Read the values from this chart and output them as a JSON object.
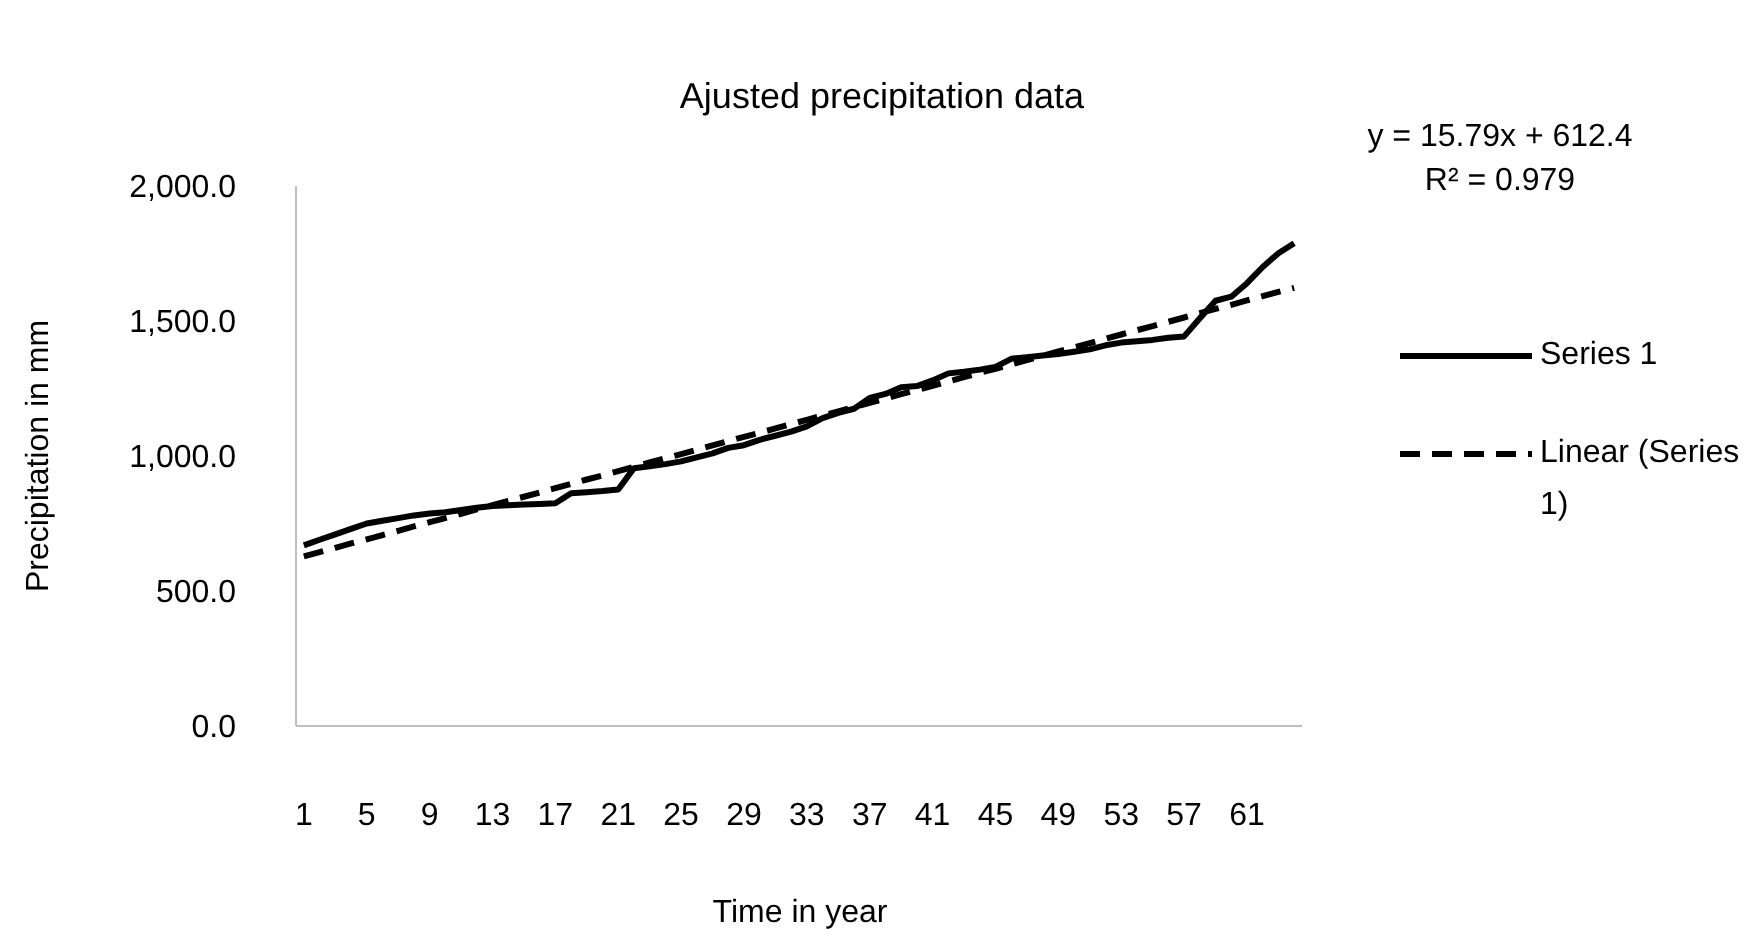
{
  "chart_data": {
    "type": "line",
    "title": "Ajusted precipitation data",
    "xlabel": "Time in year",
    "ylabel": "Precipitation in mm",
    "categories": [
      "1",
      null,
      null,
      null,
      "5",
      null,
      null,
      null,
      "9",
      null,
      null,
      null,
      "13",
      null,
      null,
      null,
      "17",
      null,
      null,
      null,
      "21",
      null,
      null,
      null,
      "25",
      null,
      null,
      null,
      "29",
      null,
      null,
      null,
      "33",
      null,
      null,
      null,
      "37",
      null,
      null,
      null,
      "41",
      null,
      null,
      null,
      "45",
      null,
      null,
      null,
      "49",
      null,
      null,
      null,
      "53",
      null,
      null,
      null,
      "57",
      null,
      null,
      null,
      "61",
      null,
      null,
      null
    ],
    "series": [
      {
        "name": "Series 1",
        "color": "#000000",
        "line_style": "solid",
        "values": [
          669,
          690,
          710,
          730,
          750,
          760,
          770,
          780,
          787,
          792,
          800,
          808,
          815,
          818,
          820,
          822,
          825,
          862,
          866,
          870,
          876,
          955,
          962,
          970,
          980,
          995,
          1010,
          1030,
          1040,
          1060,
          1075,
          1090,
          1110,
          1140,
          1160,
          1175,
          1215,
          1230,
          1255,
          1259,
          1280,
          1306,
          1312,
          1320,
          1330,
          1360,
          1366,
          1372,
          1378,
          1386,
          1395,
          1410,
          1420,
          1425,
          1430,
          1438,
          1443,
          1510,
          1575,
          1590,
          1640,
          1700,
          1751,
          1788
        ]
      },
      {
        "name": "Linear (Series 1)",
        "color": "#000000",
        "line_style": "dashed",
        "values": [
          628,
          644,
          660,
          676,
          691,
          707,
          723,
          739,
          755,
          770,
          786,
          802,
          818,
          834,
          849,
          865,
          881,
          897,
          913,
          928,
          944,
          960,
          976,
          992,
          1007,
          1023,
          1039,
          1055,
          1071,
          1086,
          1102,
          1118,
          1134,
          1150,
          1165,
          1181,
          1197,
          1213,
          1229,
          1244,
          1260,
          1276,
          1292,
          1308,
          1323,
          1339,
          1355,
          1371,
          1387,
          1402,
          1418,
          1434,
          1450,
          1466,
          1481,
          1497,
          1513,
          1529,
          1545,
          1560,
          1576,
          1592,
          1608,
          1623
        ]
      }
    ],
    "ylim": [
      0,
      2000
    ],
    "yticks": [
      {
        "value": 0,
        "label": "0.0"
      },
      {
        "value": 500,
        "label": "500.0"
      },
      {
        "value": 1000,
        "label": "1,000.0"
      },
      {
        "value": 1500,
        "label": "1,500.0"
      },
      {
        "value": 2000,
        "label": "2,000.0"
      }
    ],
    "grid": false,
    "legend": "right",
    "marker": "none",
    "annotations": [
      "y = 15.79x + 612.4",
      "R² = 0.979"
    ]
  }
}
